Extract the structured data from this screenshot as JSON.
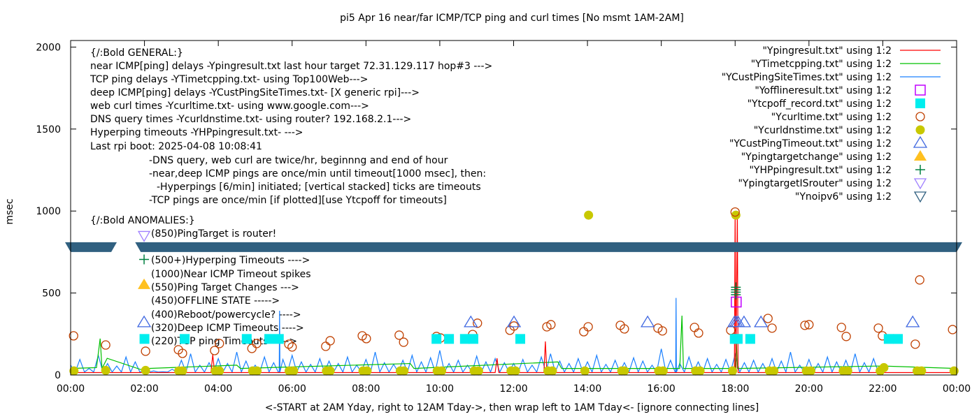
{
  "chart_data": {
    "type": "line",
    "title": "pi5 Apr 16  near/far ICMP/TCP ping and curl times [No msmt 1AM-2AM]",
    "xlabel": "<-START at 2AM Yday, right to 12AM Tday->, then wrap left to 1AM Tday<- [ignore connecting lines]",
    "ylabel": "msec",
    "xlim": [
      0,
      24
    ],
    "ylim": [
      0,
      2040
    ],
    "x_ticks": [
      "00:00",
      "02:00",
      "04:00",
      "06:00",
      "08:00",
      "10:00",
      "12:00",
      "14:00",
      "16:00",
      "18:00",
      "20:00",
      "22:00",
      "00:00"
    ],
    "y_ticks": [
      "0",
      "500",
      "1000",
      "1500",
      "2000"
    ],
    "y_tick_values": [
      0,
      500,
      1000,
      1500,
      2000
    ],
    "legend_position": "top-right",
    "annotations": [
      "{/:Bold GENERAL:}",
      "near ICMP[ping] delays -Ypingresult.txt last hour target 72.31.129.117 hop#3 --->",
      "TCP ping delays -YTimetcpping.txt- using Top100Web--->",
      "deep ICMP[ping] delays -YCustPingSiteTimes.txt- [X generic rpi]--->",
      "web curl times -Ycurltime.txt- using www.google.com--->",
      "DNS query times -Ycurldnstime.txt- using router? 192.168.2.1--->",
      "Hyperping timeouts -YHPpingresult.txt- --->",
      "Last rpi boot: 2025-04-08 10:08:41",
      "-DNS query, web curl are twice/hr, beginnng and end of hour",
      "-near,deep ICMP pings are once/min until timeout[1000 msec], then:",
      "-Hyperpings [6/min] initiated; [vertical stacked] ticks are timeouts",
      "-TCP pings are once/min [if plotted][use Ytcpoff for timeouts]",
      "{/:Bold ANOMALIES:}",
      "(850)PingTarget is router!",
      "(500+)Hyperping Timeouts ---->",
      "(1000)Near ICMP Timeout spikes",
      "(550)Ping Target Changes --->",
      "(450)OFFLINE STATE ----->",
      "(400)Reboot/powercycle? ---->",
      "(320)Deep ICMP Timeouts ---->",
      "(220)TCP ping Timeouts ----->"
    ],
    "series": [
      {
        "name": "\"Ypingresult.txt\" using 1:2",
        "style": "line",
        "color": "#ff0000",
        "points": [
          [
            0,
            15
          ],
          [
            3.8,
            15
          ],
          [
            3.85,
            124
          ],
          [
            3.9,
            15
          ],
          [
            11.5,
            15
          ],
          [
            11.55,
            102
          ],
          [
            11.6,
            15
          ],
          [
            12.82,
            15
          ],
          [
            12.86,
            205
          ],
          [
            12.9,
            15
          ],
          [
            17.98,
            15
          ],
          [
            18.0,
            1000
          ],
          [
            18.02,
            15
          ],
          [
            18.06,
            1000
          ],
          [
            18.08,
            15
          ],
          [
            24,
            15
          ]
        ]
      },
      {
        "name": "\"YTimetcpping.txt\" using 1:2",
        "style": "line",
        "color": "#00c000",
        "points": [
          [
            0,
            40
          ],
          [
            0.7,
            45
          ],
          [
            0.8,
            222
          ],
          [
            0.85,
            40
          ],
          [
            0.99,
            102
          ],
          [
            2.0,
            26
          ],
          [
            2.1,
            40
          ],
          [
            4.5,
            60
          ],
          [
            4.6,
            40
          ],
          [
            9.2,
            70
          ],
          [
            9.3,
            40
          ],
          [
            13.2,
            80
          ],
          [
            13.3,
            40
          ],
          [
            16.5,
            40
          ],
          [
            16.56,
            362
          ],
          [
            16.6,
            40
          ],
          [
            18.0,
            40
          ],
          [
            18.03,
            230
          ],
          [
            18.06,
            40
          ],
          [
            22,
            55
          ],
          [
            24,
            40
          ]
        ]
      },
      {
        "name": "\"YCustPingSiteTimes.txt\" using 1:2",
        "style": "line",
        "color": "#1a80ff",
        "x_step_hours": 0.25,
        "values": [
          60,
          95,
          40,
          120,
          70,
          55,
          110,
          80,
          30,
          25,
          20,
          35,
          90,
          130,
          60,
          75,
          100,
          70,
          140,
          85,
          60,
          110,
          75,
          95,
          120,
          80,
          65,
          100,
          85,
          70,
          110,
          60,
          95,
          140,
          75,
          65,
          90,
          120,
          80,
          105,
          150,
          70,
          90,
          60,
          115,
          80,
          100,
          75,
          70,
          95,
          60,
          110,
          130,
          85,
          70,
          100,
          80,
          120,
          65,
          90,
          75,
          105,
          85,
          60,
          160,
          90,
          70,
          110,
          80,
          100,
          65,
          95,
          125,
          75,
          90,
          70,
          100,
          85,
          140,
          60,
          95,
          70,
          110,
          80,
          90,
          130,
          75,
          100
        ],
        "spikes": [
          [
            5.66,
            392
          ],
          [
            16.4,
            470
          ]
        ]
      },
      {
        "name": "\"Yofflineresult.txt\" using 1:2",
        "style": "open-square",
        "color": "#c000ff",
        "points": [
          [
            18.03,
            445
          ]
        ]
      },
      {
        "name": "\"Ytcpoff_record.txt\" using 1:2",
        "style": "filled-square",
        "color": "#00eeee",
        "points": [
          [
            2.0,
            220
          ],
          [
            3.09,
            220
          ],
          [
            4.77,
            220
          ],
          [
            5.38,
            220
          ],
          [
            5.64,
            220
          ],
          [
            9.91,
            220
          ],
          [
            10.25,
            220
          ],
          [
            10.68,
            220
          ],
          [
            10.91,
            220
          ],
          [
            12.18,
            220
          ],
          [
            17.99,
            220
          ],
          [
            18.07,
            220
          ],
          [
            18.41,
            220
          ],
          [
            22.16,
            220
          ],
          [
            22.41,
            220
          ]
        ]
      },
      {
        "name": "\"Ycurltime.txt\" using 1:2",
        "style": "open-circle",
        "color": "#c04000",
        "points": [
          [
            0.08,
            239
          ],
          [
            0.95,
            183
          ],
          [
            2.03,
            145
          ],
          [
            2.92,
            154
          ],
          [
            3.03,
            132
          ],
          [
            3.9,
            149
          ],
          [
            4.03,
            192
          ],
          [
            4.91,
            162
          ],
          [
            5.04,
            192
          ],
          [
            5.91,
            188
          ],
          [
            6.0,
            171
          ],
          [
            6.91,
            175
          ],
          [
            7.03,
            209
          ],
          [
            7.9,
            239
          ],
          [
            8.01,
            222
          ],
          [
            8.9,
            243
          ],
          [
            9.02,
            200
          ],
          [
            9.91,
            235
          ],
          [
            10.02,
            226
          ],
          [
            10.89,
            247
          ],
          [
            11.02,
            316
          ],
          [
            11.9,
            273
          ],
          [
            12.01,
            299
          ],
          [
            12.9,
            294
          ],
          [
            13.01,
            307
          ],
          [
            13.9,
            264
          ],
          [
            14.02,
            294
          ],
          [
            14.89,
            303
          ],
          [
            15.0,
            281
          ],
          [
            15.91,
            286
          ],
          [
            16.03,
            269
          ],
          [
            16.9,
            290
          ],
          [
            17.01,
            256
          ],
          [
            17.88,
            273
          ],
          [
            18.0,
            994
          ],
          [
            18.89,
            345
          ],
          [
            19.0,
            286
          ],
          [
            19.89,
            303
          ],
          [
            20.0,
            307
          ],
          [
            20.88,
            290
          ],
          [
            21.01,
            235
          ],
          [
            21.88,
            286
          ],
          [
            21.99,
            239
          ],
          [
            22.88,
            188
          ],
          [
            23.0,
            580
          ],
          [
            23.89,
            277
          ]
        ]
      },
      {
        "name": "\"Ycurldnstime.txt\" using 1:2",
        "style": "filled-circle",
        "color": "#c8c800",
        "points": [
          [
            0.09,
            25
          ],
          [
            0.95,
            28
          ],
          [
            2.03,
            28
          ],
          [
            2.93,
            25
          ],
          [
            3.03,
            25
          ],
          [
            3.92,
            25
          ],
          [
            4.03,
            25
          ],
          [
            4.93,
            25
          ],
          [
            5.05,
            25
          ],
          [
            5.92,
            25
          ],
          [
            6.04,
            25
          ],
          [
            6.93,
            25
          ],
          [
            7.03,
            25
          ],
          [
            7.92,
            25
          ],
          [
            8.03,
            25
          ],
          [
            8.93,
            25
          ],
          [
            9.03,
            25
          ],
          [
            9.93,
            25
          ],
          [
            10.05,
            25
          ],
          [
            10.93,
            25
          ],
          [
            11.05,
            25
          ],
          [
            11.93,
            25
          ],
          [
            12.05,
            25
          ],
          [
            12.93,
            25
          ],
          [
            13.05,
            25
          ],
          [
            13.93,
            25
          ],
          [
            14.03,
            975
          ],
          [
            14.93,
            25
          ],
          [
            15.0,
            25
          ],
          [
            15.93,
            25
          ],
          [
            16.05,
            25
          ],
          [
            16.93,
            25
          ],
          [
            17.05,
            25
          ],
          [
            17.93,
            25
          ],
          [
            18.02,
            975
          ],
          [
            18.93,
            25
          ],
          [
            19.05,
            25
          ],
          [
            19.93,
            25
          ],
          [
            20.05,
            25
          ],
          [
            20.93,
            25
          ],
          [
            21.05,
            25
          ],
          [
            21.93,
            25
          ],
          [
            22.03,
            45
          ],
          [
            22.93,
            25
          ],
          [
            23.05,
            25
          ],
          [
            23.93,
            25
          ]
        ]
      },
      {
        "name": "\"YCustPingTimeout.txt\" using 1:2",
        "style": "open-triangle-up",
        "color": "#4169e1",
        "points": [
          [
            1.99,
            320
          ],
          [
            10.84,
            320
          ],
          [
            12.01,
            320
          ],
          [
            15.63,
            320
          ],
          [
            17.98,
            320
          ],
          [
            18.03,
            320
          ],
          [
            18.08,
            320
          ],
          [
            18.24,
            320
          ],
          [
            18.7,
            320
          ],
          [
            22.81,
            320
          ]
        ]
      },
      {
        "name": "\"Ypingtargetchange\" using 1:2",
        "style": "filled-triangle-up",
        "color": "#ffc020",
        "points": [
          [
            1.99,
            550
          ]
        ]
      },
      {
        "name": "\"YHPpingresult.txt\" using 1:2",
        "style": "plus",
        "color": "#008040",
        "points": [
          [
            1.99,
            705
          ],
          [
            18.02,
            490
          ],
          [
            18.02,
            505
          ],
          [
            18.02,
            520
          ],
          [
            18.02,
            535
          ]
        ]
      },
      {
        "name": "\"YpingtargetISrouter\" using 1:2",
        "style": "open-triangle-down",
        "color": "#a080ff",
        "points": [
          [
            1.99,
            850
          ]
        ]
      },
      {
        "name": "\"Ynoipv6\" using 1:2",
        "style": "open-triangle-down",
        "color": "#306080",
        "value": 780,
        "ranges": [
          [
            0,
            1.1
          ],
          [
            1.9,
            24
          ]
        ]
      }
    ]
  }
}
